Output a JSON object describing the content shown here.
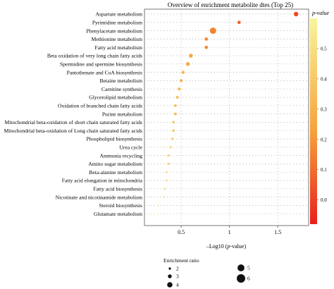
{
  "chart_data": {
    "type": "scatter",
    "title": "Overview of enrichment metabolite dtes (Top 25)",
    "xlabel_prefix": "–Log10 (",
    "xlabel_italic": "p",
    "xlabel_suffix": "-value)",
    "xlim": [
      0.12,
      1.82
    ],
    "xticks": [
      0.5,
      1,
      1.5
    ],
    "xtick_labels": [
      "0.5",
      "1",
      "1.5"
    ],
    "grid": "dotted",
    "categories": [
      "Aspartate metabolism",
      "Pyrimidine metabolism",
      "Phenylacetate metabolism",
      "Methionine metabolism",
      "Fatty acid metabolism",
      "Beta oxidation of very long chain fatty acids",
      "Spermidine and spermine biosynthesis",
      "Pantothenate and CoA biosynthesis",
      "Betaine metabolism",
      "Carnitine synthesis",
      "Glycerolipid metabolism",
      "Oxidation of branched chain fatty acids",
      "Purine metabolism",
      "Mitochondrial beta-oxidation of short chain saturated fatty acids",
      "Mitochondrial beta-oxidation of Long chain saturated fatty acids",
      "Phospholipid biosynthesis",
      "Urea cycle",
      "Ammonia recycling",
      "Amino sugar metabolism",
      "Beta-alanine metabolism",
      "Fatty acid elongation in mitochondria",
      "Fatty acid biosynthesis",
      "Nicotinate and nicotinamide metabolism",
      "Steroid biosynthesis",
      "Glutamate metabolism"
    ],
    "x": [
      1.69,
      1.1,
      0.83,
      0.76,
      0.76,
      0.6,
      0.57,
      0.52,
      0.5,
      0.48,
      0.46,
      0.44,
      0.44,
      0.42,
      0.42,
      0.41,
      0.39,
      0.37,
      0.37,
      0.35,
      0.35,
      0.33,
      0.32,
      0.26,
      0.22
    ],
    "enrichment_ratio": [
      4.5,
      3.5,
      6.0,
      3.5,
      3.5,
      4.0,
      4.0,
      3.2,
      3.2,
      3.2,
      3.0,
      3.0,
      3.0,
      2.8,
      2.8,
      2.6,
      2.5,
      2.5,
      2.5,
      2.3,
      2.3,
      2.2,
      2.2,
      2.0,
      2.0
    ],
    "p_value": [
      0.02,
      0.08,
      0.15,
      0.17,
      0.17,
      0.25,
      0.27,
      0.3,
      0.32,
      0.33,
      0.35,
      0.36,
      0.36,
      0.38,
      0.38,
      0.39,
      0.41,
      0.43,
      0.43,
      0.45,
      0.45,
      0.47,
      0.48,
      0.55,
      0.6
    ],
    "colorbar": {
      "title": "p-value",
      "range": [
        -0.08,
        0.6
      ],
      "ticks": [
        0.0,
        0.1,
        0.2,
        0.3,
        0.4,
        0.5
      ],
      "tick_labels": [
        "0.0",
        "0.1",
        "0.2",
        "0.3",
        "0.4",
        "0.5"
      ],
      "low_color": "#e8201c",
      "mid_color": "#f5a23c",
      "high_color": "#f7f59a"
    },
    "size_legend": {
      "title": "Enrichment ratio",
      "entries": [
        {
          "label": "2",
          "value": 2
        },
        {
          "label": "3",
          "value": 3
        },
        {
          "label": "4",
          "value": 4
        },
        {
          "label": "5",
          "value": 5
        },
        {
          "label": "6",
          "value": 6
        }
      ],
      "placement": "bottom"
    }
  }
}
